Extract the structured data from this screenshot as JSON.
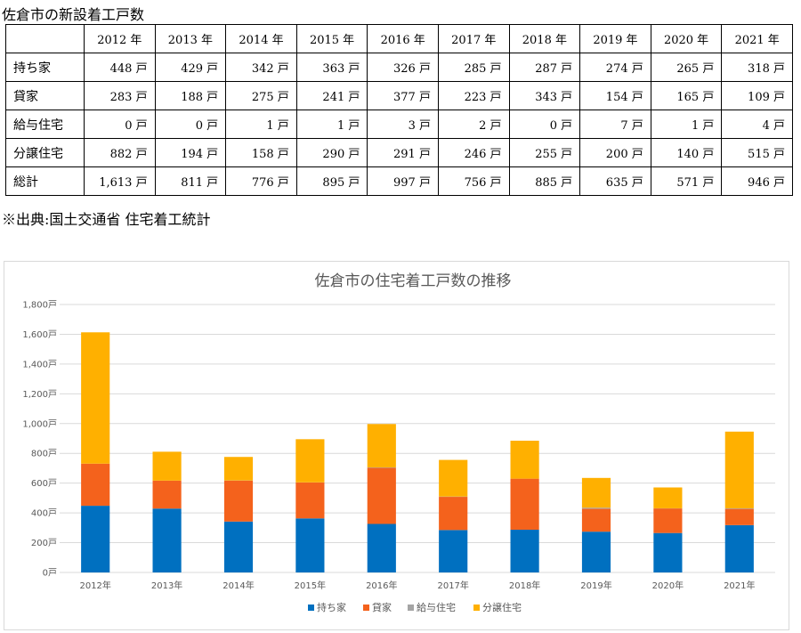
{
  "table": {
    "title": "佐倉市の新設着工戸数",
    "header_blank": "",
    "years": [
      "2012 年",
      "2013 年",
      "2014 年",
      "2015 年",
      "2016 年",
      "2017 年",
      "2018 年",
      "2019 年",
      "2020 年",
      "2021 年"
    ],
    "rows": [
      {
        "label": "持ち家",
        "cells": [
          "448 戸",
          "429 戸",
          "342 戸",
          "363 戸",
          "326 戸",
          "285 戸",
          "287 戸",
          "274 戸",
          "265 戸",
          "318 戸"
        ]
      },
      {
        "label": "貸家",
        "cells": [
          "283 戸",
          "188 戸",
          "275 戸",
          "241 戸",
          "377 戸",
          "223 戸",
          "343 戸",
          "154 戸",
          "165 戸",
          "109 戸"
        ]
      },
      {
        "label": "給与住宅",
        "cells": [
          "0 戸",
          "0 戸",
          "1 戸",
          "1 戸",
          "3 戸",
          "2 戸",
          "0 戸",
          "7 戸",
          "1 戸",
          "4 戸"
        ]
      },
      {
        "label": "分譲住宅",
        "cells": [
          "882 戸",
          "194 戸",
          "158 戸",
          "290 戸",
          "291 戸",
          "246 戸",
          "255 戸",
          "200 戸",
          "140 戸",
          "515 戸"
        ]
      },
      {
        "label": "総計",
        "cells": [
          "1,613 戸",
          "811 戸",
          "776 戸",
          "895 戸",
          "997 戸",
          "756 戸",
          "885 戸",
          "635 戸",
          "571 戸",
          "946 戸"
        ]
      }
    ]
  },
  "source": "※出典:国土交通省  住宅着工統計",
  "chart_data": {
    "type": "bar",
    "stacked": true,
    "title": "佐倉市の住宅着工戸数の推移",
    "categories": [
      "2012年",
      "2013年",
      "2014年",
      "2015年",
      "2016年",
      "2017年",
      "2018年",
      "2019年",
      "2020年",
      "2021年"
    ],
    "ylim": [
      0,
      1800
    ],
    "yticks": [
      "0戸",
      "200戸",
      "400戸",
      "600戸",
      "800戸",
      "1,000戸",
      "1,200戸",
      "1,400戸",
      "1,600戸",
      "1,800戸"
    ],
    "grid": true,
    "legend_position": "bottom",
    "series": [
      {
        "name": "持ち家",
        "color": "#0070c0",
        "values": [
          448,
          429,
          342,
          363,
          326,
          285,
          287,
          274,
          265,
          318
        ]
      },
      {
        "name": "貸家",
        "color": "#f4621c",
        "values": [
          283,
          188,
          275,
          241,
          377,
          223,
          343,
          154,
          165,
          109
        ]
      },
      {
        "name": "給与住宅",
        "color": "#a5a5a5",
        "values": [
          0,
          0,
          1,
          1,
          3,
          2,
          0,
          7,
          1,
          4
        ]
      },
      {
        "name": "分譲住宅",
        "color": "#ffb000",
        "values": [
          882,
          194,
          158,
          290,
          291,
          246,
          255,
          200,
          140,
          515
        ]
      }
    ]
  }
}
